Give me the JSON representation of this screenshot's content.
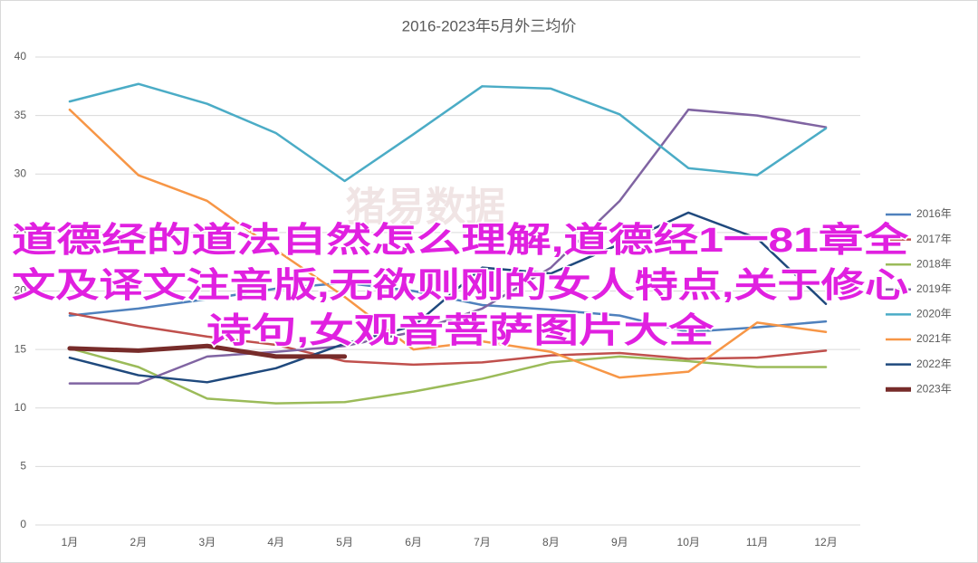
{
  "chart_data": {
    "type": "line",
    "title": "2016-2023年5月外三均价",
    "categories": [
      "1月",
      "2月",
      "3月",
      "4月",
      "5月",
      "6月",
      "7月",
      "8月",
      "9月",
      "10月",
      "11月",
      "12月"
    ],
    "series": [
      {
        "name": "2016年",
        "color": "#4f81bd",
        "width": 2.5,
        "values": [
          17.9,
          18.5,
          19.3,
          20.2,
          20.7,
          20.0,
          18.8,
          18.4,
          17.9,
          16.5,
          16.9,
          17.4
        ]
      },
      {
        "name": "2017年",
        "color": "#c0504d",
        "width": 2.5,
        "values": [
          18.1,
          17.0,
          16.1,
          15.4,
          14.0,
          13.7,
          13.9,
          14.5,
          14.7,
          14.2,
          14.3,
          14.9
        ]
      },
      {
        "name": "2018年",
        "color": "#9bbb59",
        "width": 2.5,
        "values": [
          15.1,
          13.5,
          10.8,
          10.4,
          10.5,
          11.4,
          12.5,
          13.9,
          14.4,
          14.0,
          13.5,
          13.5
        ]
      },
      {
        "name": "2019年",
        "color": "#8064a2",
        "width": 2.5,
        "values": [
          12.1,
          12.1,
          14.4,
          14.8,
          15.3,
          16.5,
          18.5,
          22.0,
          27.7,
          35.5,
          35.0,
          34.0
        ]
      },
      {
        "name": "2020年",
        "color": "#4bacc6",
        "width": 2.5,
        "values": [
          36.2,
          37.7,
          36.0,
          33.5,
          29.4,
          33.4,
          37.5,
          37.3,
          35.1,
          30.5,
          29.9,
          33.9
        ]
      },
      {
        "name": "2021年",
        "color": "#f79646",
        "width": 2.5,
        "values": [
          35.5,
          29.9,
          27.7,
          23.5,
          19.5,
          15.0,
          15.7,
          14.8,
          12.6,
          13.1,
          17.3,
          16.5
        ]
      },
      {
        "name": "2022年",
        "color": "#1f497d",
        "width": 2.5,
        "values": [
          14.3,
          12.8,
          12.2,
          13.4,
          15.5,
          17.0,
          22.0,
          21.5,
          24.0,
          26.7,
          24.5,
          18.9
        ]
      },
      {
        "name": "2023年",
        "color": "#772c2a",
        "width": 5,
        "values": [
          15.1,
          14.9,
          15.3,
          14.4,
          14.4,
          null,
          null,
          null,
          null,
          null,
          null,
          null
        ]
      }
    ],
    "ylim": [
      0,
      40
    ],
    "yticks": [
      0,
      5,
      10,
      15,
      20,
      25,
      30,
      35,
      40
    ],
    "grid": true,
    "legend": "right",
    "watermark": "猪易数据",
    "overlay": [
      "道德经的道法自然怎么理解,道德经1一81章全",
      "文及译文注音版,无欲则刚的女人特点,关于修心",
      "诗句,女观音菩萨图片大全"
    ]
  }
}
